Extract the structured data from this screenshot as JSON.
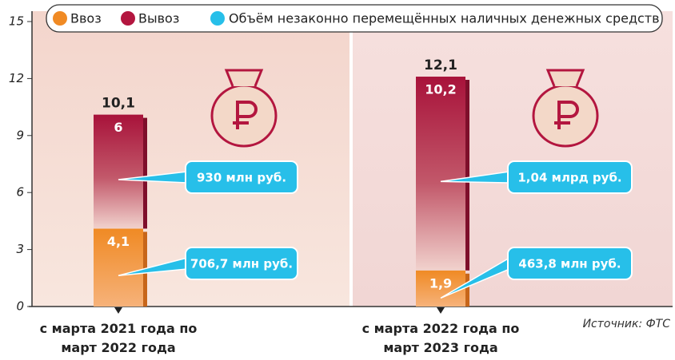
{
  "chart_data": {
    "type": "stacked-bar",
    "categories": [
      "с марта 2021 года по март 2022 года",
      "с марта 2022 года по март 2023 года"
    ],
    "series": [
      {
        "name": "Ввоз",
        "color": "#f08a24",
        "values": [
          4.1,
          1.9
        ],
        "value_labels": [
          "4,1",
          "1,9"
        ],
        "callouts": [
          "706,7 млн руб.",
          "463,8 млн руб."
        ]
      },
      {
        "name": "Вывоз",
        "color": "#b3163f",
        "values": [
          6,
          10.2
        ],
        "value_labels": [
          "6",
          "10,2"
        ],
        "callouts": [
          "930 млн руб.",
          "1,04 млрд руб."
        ]
      }
    ],
    "totals": [
      10.1,
      12.1
    ],
    "total_labels": [
      "10,1",
      "12,1"
    ],
    "callout_legend": {
      "name": "Объём незаконно перемещённых наличных денежных средств",
      "color": "#27bfe9"
    },
    "ylim": [
      0,
      15
    ],
    "yticks": [
      0,
      3,
      6,
      9,
      12,
      15
    ],
    "source": "Источник: ФТС"
  }
}
